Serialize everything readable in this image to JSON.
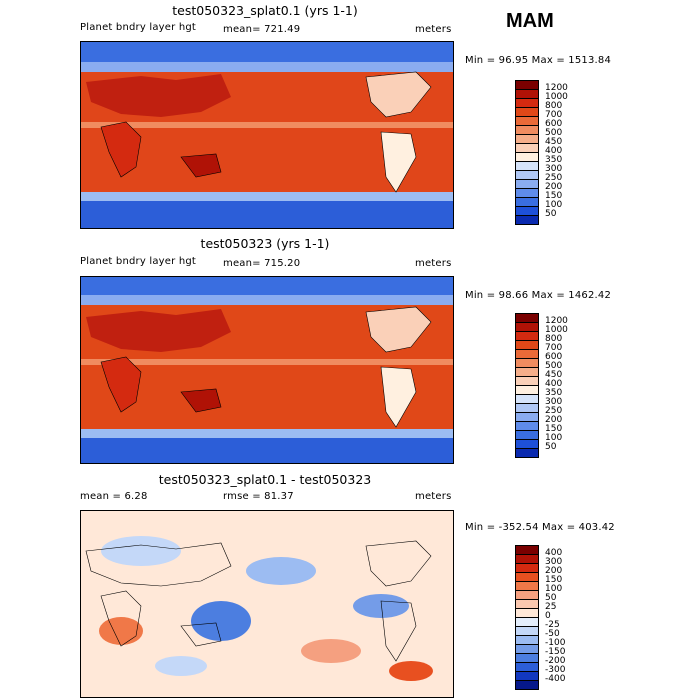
{
  "season": "MAM",
  "panels": [
    {
      "title": "test050323_splat0.1 (yrs 1-1)",
      "left_label": "Planet bndry layer hgt",
      "center_label": "mean= 721.49",
      "right_label": "meters",
      "stats": "Min =  96.95 Max = 1513.84",
      "colorbar_labels": [
        "1200",
        "1000",
        "800",
        "700",
        "600",
        "500",
        "450",
        "400",
        "350",
        "300",
        "250",
        "200",
        "150",
        "100",
        "50"
      ],
      "colors": [
        "#7a0000",
        "#b01206",
        "#d42a10",
        "#e04818",
        "#ea6a38",
        "#f08c60",
        "#f5ae8a",
        "#fad0b8",
        "#fff0e0",
        "#d6e4fa",
        "#b0c8f5",
        "#8aacf0",
        "#5f8cea",
        "#3a6ee0",
        "#1e50d8",
        "#0a2ab0"
      ]
    },
    {
      "title": "test050323 (yrs 1-1)",
      "left_label": "Planet bndry layer hgt",
      "center_label": "mean= 715.20",
      "right_label": "meters",
      "stats": "Min =  98.66 Max = 1462.42",
      "colorbar_labels": [
        "1200",
        "1000",
        "800",
        "700",
        "600",
        "500",
        "450",
        "400",
        "350",
        "300",
        "250",
        "200",
        "150",
        "100",
        "50"
      ],
      "colors": [
        "#7a0000",
        "#b01206",
        "#d42a10",
        "#e04818",
        "#ea6a38",
        "#f08c60",
        "#f5ae8a",
        "#fad0b8",
        "#fff0e0",
        "#d6e4fa",
        "#b0c8f5",
        "#8aacf0",
        "#5f8cea",
        "#3a6ee0",
        "#1e50d8",
        "#0a2ab0"
      ]
    },
    {
      "title": "test050323_splat0.1 - test050323",
      "left_label": "mean =    6.28",
      "center_label": "rmse =   81.37",
      "right_label": "meters",
      "stats": "Min = -352.54 Max = 403.42",
      "colorbar_labels": [
        "400",
        "300",
        "200",
        "150",
        "100",
        "50",
        "25",
        "0",
        "-25",
        "-50",
        "-100",
        "-150",
        "-200",
        "-300",
        "-400"
      ],
      "colors": [
        "#7a0000",
        "#b01206",
        "#d42a10",
        "#e85020",
        "#f07848",
        "#f5a080",
        "#fac8b0",
        "#ffe8d8",
        "#e4eefc",
        "#c4d8f8",
        "#9cbcf2",
        "#749ce8",
        "#4c7ee0",
        "#2c5ed8",
        "#1238c0",
        "#06188a"
      ]
    }
  ],
  "chart_data": [
    {
      "type": "heatmap",
      "title": "test050323_splat0.1 (yrs 1-1)",
      "subtitle": "Planet bndry layer hgt",
      "units": "meters",
      "mean": 721.49,
      "min": 96.95,
      "max": 1513.84,
      "levels": [
        50,
        100,
        150,
        200,
        250,
        300,
        350,
        400,
        450,
        500,
        600,
        700,
        800,
        1000,
        1200
      ]
    },
    {
      "type": "heatmap",
      "title": "test050323 (yrs 1-1)",
      "subtitle": "Planet bndry layer hgt",
      "units": "meters",
      "mean": 715.2,
      "min": 98.66,
      "max": 1462.42,
      "levels": [
        50,
        100,
        150,
        200,
        250,
        300,
        350,
        400,
        450,
        500,
        600,
        700,
        800,
        1000,
        1200
      ]
    },
    {
      "type": "heatmap",
      "title": "test050323_splat0.1 - test050323",
      "units": "meters",
      "mean": 6.28,
      "rmse": 81.37,
      "min": -352.54,
      "max": 403.42,
      "levels": [
        -400,
        -300,
        -200,
        -150,
        -100,
        -50,
        -25,
        0,
        25,
        50,
        100,
        150,
        200,
        300,
        400
      ]
    }
  ]
}
